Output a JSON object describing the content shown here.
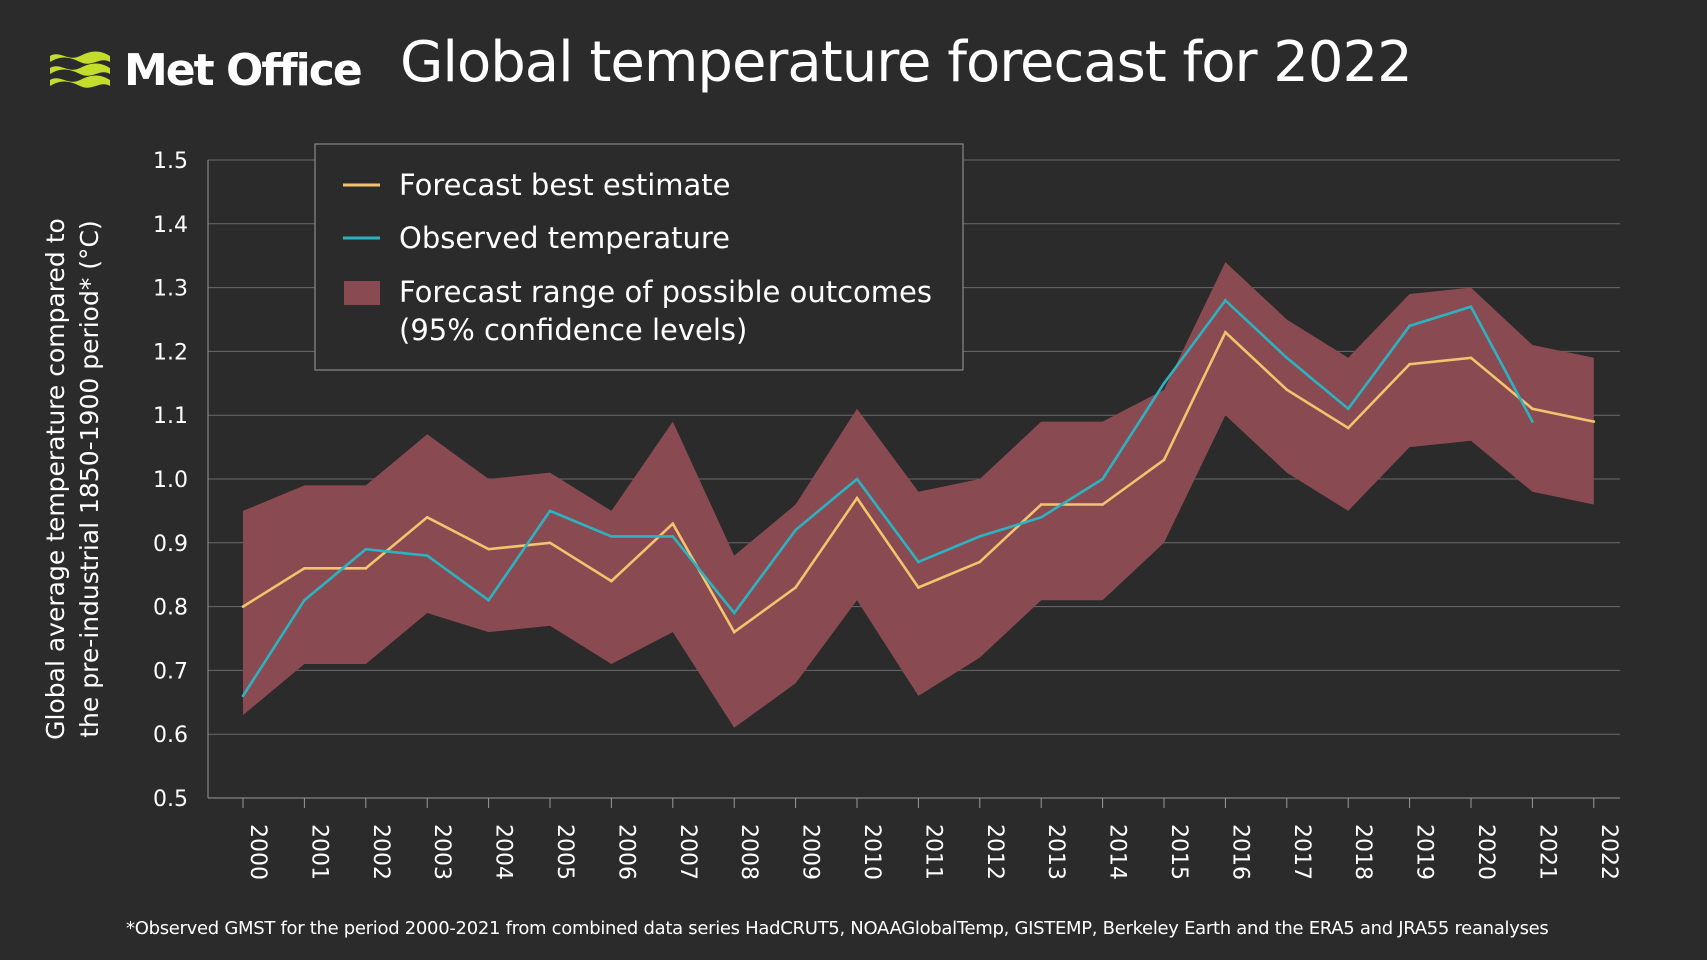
{
  "header": {
    "logo_text": "Met Office",
    "title": "Global temperature forecast for 2022"
  },
  "footnote": "*Observed GMST for the period 2000-2021 from combined data series HadCRUT5, NOAAGlobalTemp, GISTEMP, Berkeley Earth and the ERA5 and JRA55 reanalyses",
  "colors": {
    "background": "#2b2b2b",
    "brand_green": "#c2dd2c",
    "forecast": "#f2c46d",
    "observed": "#2cb3c2",
    "range": "#8a4a52",
    "grid": "#6a6a6a"
  },
  "chart_data": {
    "type": "line",
    "ylabel_lines": [
      "Global average temperature compared to",
      "the pre-industrial 1850-1900 period* (°C)"
    ],
    "ylim": [
      0.5,
      1.5
    ],
    "yticks": [
      "0.5",
      "0.6",
      "0.7",
      "0.8",
      "0.9",
      "1.0",
      "1.1",
      "1.2",
      "1.3",
      "1.4",
      "1.5"
    ],
    "grid": true,
    "legend_position": "top-left",
    "x": [
      "2000",
      "2001",
      "2002",
      "2003",
      "2004",
      "2005",
      "2006",
      "2007",
      "2008",
      "2009",
      "2010",
      "2011",
      "2012",
      "2013",
      "2014",
      "2015",
      "2016",
      "2017",
      "2018",
      "2019",
      "2020",
      "2021",
      "2022"
    ],
    "series": [
      {
        "name": "Forecast best estimate",
        "values": [
          0.8,
          0.86,
          0.86,
          0.94,
          0.89,
          0.9,
          0.84,
          0.93,
          0.76,
          0.83,
          0.97,
          0.83,
          0.87,
          0.96,
          0.96,
          1.03,
          1.23,
          1.14,
          1.08,
          1.18,
          1.19,
          1.11,
          1.09
        ]
      },
      {
        "name": "Observed temperature",
        "values": [
          0.66,
          0.81,
          0.89,
          0.88,
          0.81,
          0.95,
          0.91,
          0.91,
          0.79,
          0.92,
          1.0,
          0.87,
          0.91,
          0.94,
          1.0,
          1.15,
          1.28,
          1.19,
          1.11,
          1.24,
          1.27,
          1.09,
          null
        ]
      }
    ],
    "range": {
      "name_lines": [
        "Forecast range of possible outcomes",
        "(95% confidence levels)"
      ],
      "lower": [
        0.63,
        0.71,
        0.71,
        0.79,
        0.76,
        0.77,
        0.71,
        0.76,
        0.61,
        0.68,
        0.81,
        0.66,
        0.72,
        0.81,
        0.81,
        0.9,
        1.1,
        1.01,
        0.95,
        1.05,
        1.06,
        0.98,
        0.96
      ],
      "upper": [
        0.95,
        0.99,
        0.99,
        1.07,
        1.0,
        1.01,
        0.95,
        1.09,
        0.88,
        0.96,
        1.11,
        0.98,
        1.0,
        1.09,
        1.09,
        1.14,
        1.34,
        1.25,
        1.19,
        1.29,
        1.3,
        1.21,
        1.19
      ]
    }
  }
}
